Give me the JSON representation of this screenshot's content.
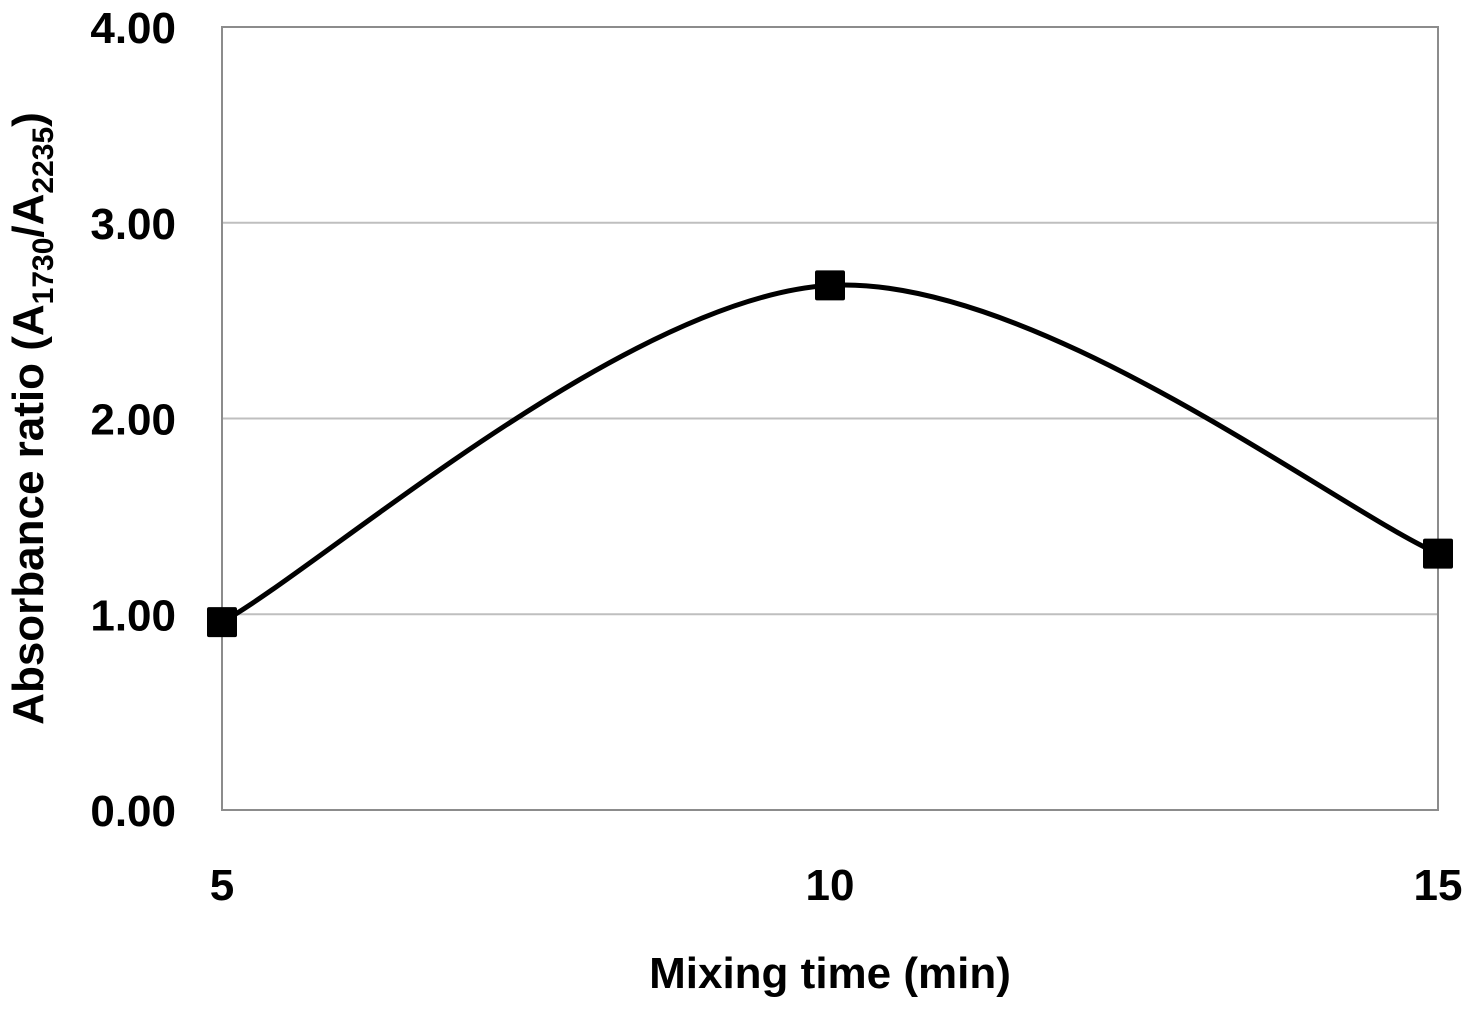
{
  "chart_data": {
    "type": "line",
    "title": "",
    "xlabel": "Mixing time (min)",
    "ylabel": {
      "prefix": "Absorbance ratio (A",
      "sub1": "1730",
      "middle": "/A",
      "sub2": "2235",
      "suffix": ")"
    },
    "x": [
      5,
      10,
      15
    ],
    "x_tick_labels": [
      "5",
      "10",
      "15"
    ],
    "xlim": [
      5,
      15
    ],
    "ylim": [
      0,
      4
    ],
    "y_ticks": [
      0,
      1,
      2,
      3,
      4
    ],
    "y_tick_labels": [
      "0.00",
      "1.00",
      "2.00",
      "3.00",
      "4.00"
    ],
    "series": [
      {
        "values": [
          0.96,
          2.68,
          1.31
        ],
        "color": "#000000",
        "marker": "square",
        "smooth": true
      }
    ],
    "grid": {
      "horizontal": true,
      "vertical": false,
      "color": "#bfbfbf"
    },
    "legend": "none"
  }
}
